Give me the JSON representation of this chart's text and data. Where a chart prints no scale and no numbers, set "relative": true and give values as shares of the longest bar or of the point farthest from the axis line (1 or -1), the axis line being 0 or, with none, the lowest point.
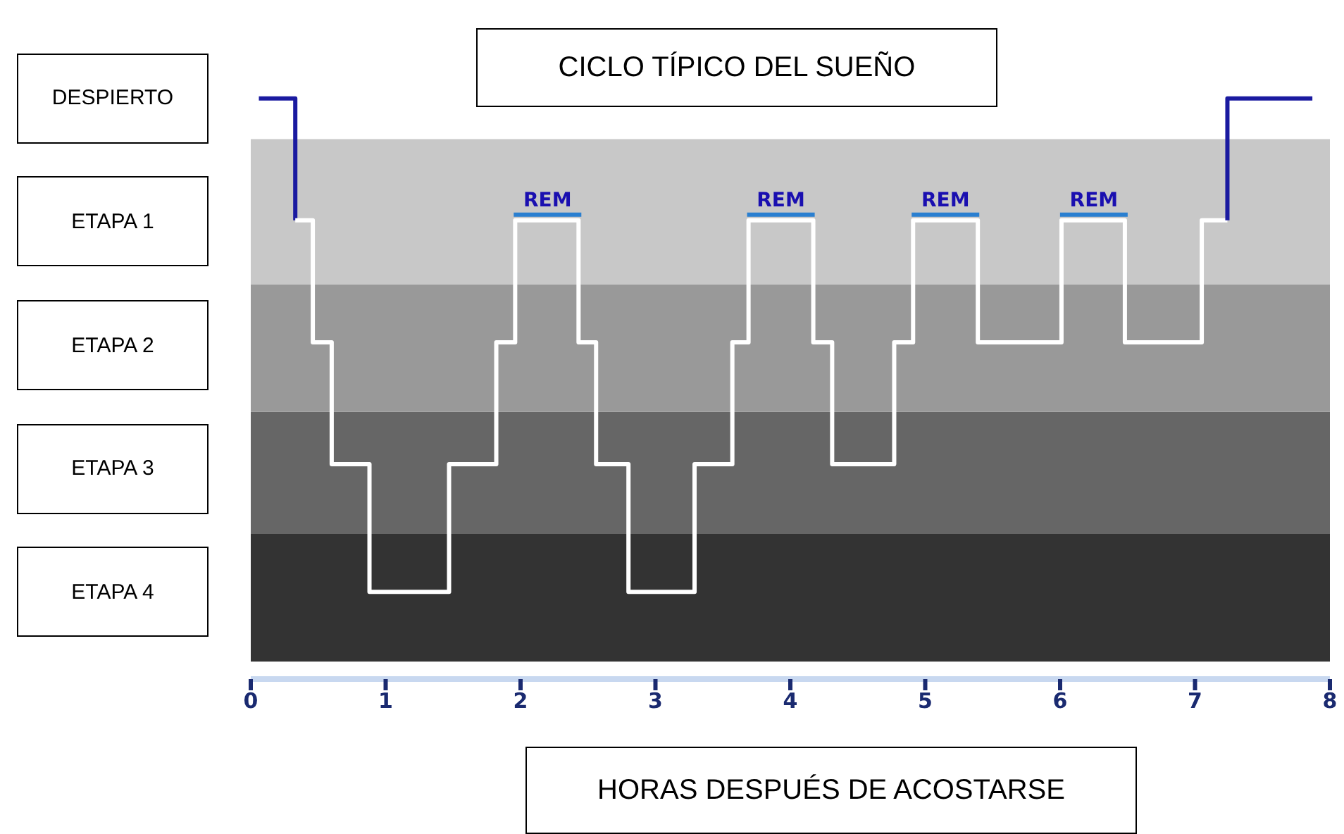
{
  "chart_data": {
    "type": "line",
    "relative": true,
    "title": "CICLO TÍPICO DEL SUEÑO",
    "xlabel": "HORAS DESPUÉS DE ACOSTARSE",
    "xlim": [
      0,
      8
    ],
    "xticks": [
      0,
      1,
      2,
      3,
      4,
      5,
      6,
      7,
      8
    ],
    "y_categories": [
      "DESPIERTO",
      "ETAPA 1",
      "ETAPA 2",
      "ETAPA 3",
      "ETAPA 4"
    ],
    "bands": [
      {
        "axis": "y",
        "from": 0.03,
        "to": 0.25,
        "color": "#333333"
      },
      {
        "axis": "y",
        "from": 0.25,
        "to": 0.46,
        "color": "#666666"
      },
      {
        "axis": "y",
        "from": 0.46,
        "to": 0.68,
        "color": "#999999"
      },
      {
        "axis": "y",
        "from": 0.68,
        "to": 0.93,
        "color": "#c8c8c8"
      }
    ],
    "series": [
      {
        "color": "#1a1aa0",
        "x": [
          0.06,
          0.33,
          0.33
        ],
        "values": [
          1,
          1,
          0.79
        ]
      },
      {
        "color": "#ffffff",
        "x": [
          0.33,
          0.46,
          0.46,
          0.6,
          0.6,
          0.88,
          0.88,
          1.47,
          1.47,
          1.82,
          1.82,
          1.96,
          1.96,
          2.43,
          2.43,
          2.56,
          2.56,
          2.8,
          2.8,
          3.29,
          3.29,
          3.57,
          3.57,
          3.69,
          3.69,
          4.17,
          4.17,
          4.31,
          4.31,
          4.77,
          4.77,
          4.91,
          4.91,
          5.39,
          5.39,
          6.01,
          6.01,
          6.48,
          6.48,
          7.05,
          7.05,
          7.24
        ],
        "values": [
          0.79,
          0.79,
          0.58,
          0.58,
          0.37,
          0.37,
          0.15,
          0.15,
          0.37,
          0.37,
          0.58,
          0.58,
          0.79,
          0.79,
          0.58,
          0.58,
          0.37,
          0.37,
          0.15,
          0.15,
          0.37,
          0.37,
          0.58,
          0.58,
          0.79,
          0.79,
          0.58,
          0.58,
          0.37,
          0.37,
          0.58,
          0.58,
          0.79,
          0.79,
          0.58,
          0.58,
          0.79,
          0.79,
          0.58,
          0.58,
          0.79,
          0.79
        ]
      },
      {
        "color": "#1a1aa0",
        "x": [
          7.24,
          7.24,
          7.87
        ],
        "values": [
          0.79,
          1,
          1
        ]
      }
    ],
    "annotations": [
      {
        "text": "REM",
        "x": 2.2,
        "y": 0.79
      },
      {
        "text": "REM",
        "x": 3.93,
        "y": 0.79
      },
      {
        "text": "REM",
        "x": 5.15,
        "y": 0.79
      },
      {
        "text": "REM",
        "x": 6.25,
        "y": 0.79
      }
    ]
  }
}
